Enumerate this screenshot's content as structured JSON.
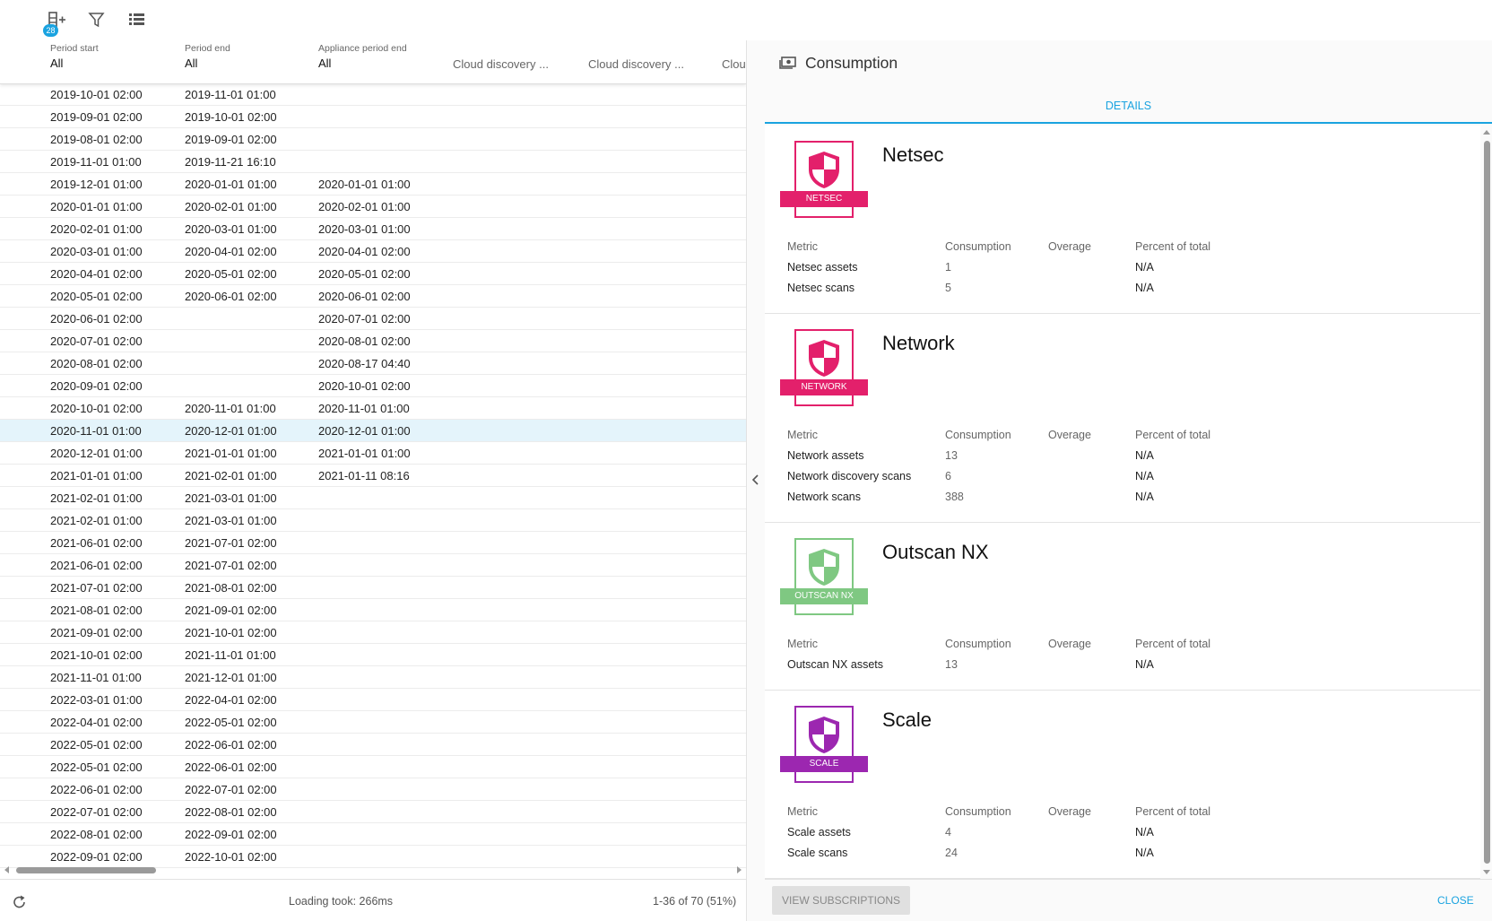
{
  "toolbar": {
    "badge": "28"
  },
  "table": {
    "columns": [
      {
        "label": "Period start",
        "filter": "All"
      },
      {
        "label": "Period end",
        "filter": "All"
      },
      {
        "label": "Appliance period end",
        "filter": "All"
      },
      {
        "label": "Cloud discovery ..."
      },
      {
        "label": "Cloud discovery ..."
      },
      {
        "label": "Clou"
      }
    ],
    "selected_row": 15,
    "rows": [
      [
        "2019-10-01 02:00",
        "2019-11-01 01:00",
        null
      ],
      [
        "2019-09-01 02:00",
        "2019-10-01 02:00",
        null
      ],
      [
        "2019-08-01 02:00",
        "2019-09-01 02:00",
        null
      ],
      [
        "2019-11-01 01:00",
        "2019-11-21 16:10",
        null
      ],
      [
        "2019-12-01 01:00",
        "2020-01-01 01:00",
        "2020-01-01 01:00"
      ],
      [
        "2020-01-01 01:00",
        "2020-02-01 01:00",
        "2020-02-01 01:00"
      ],
      [
        "2020-02-01 01:00",
        "2020-03-01 01:00",
        "2020-03-01 01:00"
      ],
      [
        "2020-03-01 01:00",
        "2020-04-01 02:00",
        "2020-04-01 02:00"
      ],
      [
        "2020-04-01 02:00",
        "2020-05-01 02:00",
        "2020-05-01 02:00"
      ],
      [
        "2020-05-01 02:00",
        "2020-06-01 02:00",
        "2020-06-01 02:00"
      ],
      [
        "2020-06-01 02:00",
        null,
        "2020-07-01 02:00"
      ],
      [
        "2020-07-01 02:00",
        null,
        "2020-08-01 02:00"
      ],
      [
        "2020-08-01 02:00",
        null,
        "2020-08-17 04:40"
      ],
      [
        "2020-09-01 02:00",
        null,
        "2020-10-01 02:00"
      ],
      [
        "2020-10-01 02:00",
        "2020-11-01 01:00",
        "2020-11-01 01:00"
      ],
      [
        "2020-11-01 01:00",
        "2020-12-01 01:00",
        "2020-12-01 01:00"
      ],
      [
        "2020-12-01 01:00",
        "2021-01-01 01:00",
        "2021-01-01 01:00"
      ],
      [
        "2021-01-01 01:00",
        "2021-02-01 01:00",
        "2021-01-11 08:16"
      ],
      [
        "2021-02-01 01:00",
        "2021-03-01 01:00",
        null
      ],
      [
        "2021-02-01 01:00",
        "2021-03-01 01:00",
        null
      ],
      [
        "2021-06-01 02:00",
        "2021-07-01 02:00",
        null
      ],
      [
        "2021-06-01 02:00",
        "2021-07-01 02:00",
        null
      ],
      [
        "2021-07-01 02:00",
        "2021-08-01 02:00",
        null
      ],
      [
        "2021-08-01 02:00",
        "2021-09-01 02:00",
        null
      ],
      [
        "2021-09-01 02:00",
        "2021-10-01 02:00",
        null
      ],
      [
        "2021-10-01 02:00",
        "2021-11-01 01:00",
        null
      ],
      [
        "2021-11-01 01:00",
        "2021-12-01 01:00",
        null
      ],
      [
        "2022-03-01 01:00",
        "2022-04-01 02:00",
        null
      ],
      [
        "2022-04-01 02:00",
        "2022-05-01 02:00",
        null
      ],
      [
        "2022-05-01 02:00",
        "2022-06-01 02:00",
        null
      ],
      [
        "2022-05-01 02:00",
        "2022-06-01 02:00",
        null
      ],
      [
        "2022-06-01 02:00",
        "2022-07-01 02:00",
        null
      ],
      [
        "2022-07-01 02:00",
        "2022-08-01 02:00",
        null
      ],
      [
        "2022-08-01 02:00",
        "2022-09-01 02:00",
        null
      ],
      [
        "2022-09-01 02:00",
        "2022-10-01 02:00",
        null
      ]
    ]
  },
  "footer": {
    "status": "Loading took: 266ms",
    "pagination": "1-36 of 70 (51%)"
  },
  "panel": {
    "title": "Consumption",
    "tab": "DETAILS",
    "metric_headers": [
      "Metric",
      "Consumption",
      "Overage",
      "Percent of total"
    ],
    "products": [
      {
        "name": "Netsec",
        "badge": "NETSEC",
        "color": "#e3206b",
        "metrics": [
          [
            "Netsec assets",
            1,
            null,
            "N/A"
          ],
          [
            "Netsec scans",
            5,
            null,
            "N/A"
          ]
        ]
      },
      {
        "name": "Network",
        "badge": "NETWORK",
        "color": "#e3206b",
        "metrics": [
          [
            "Network assets",
            13,
            null,
            "N/A"
          ],
          [
            "Network discovery scans",
            6,
            null,
            "N/A"
          ],
          [
            "Network scans",
            388,
            null,
            "N/A"
          ]
        ]
      },
      {
        "name": "Outscan NX",
        "badge": "OUTSCAN NX",
        "color": "#7fc882",
        "metrics": [
          [
            "Outscan NX assets",
            13,
            null,
            "N/A"
          ]
        ]
      },
      {
        "name": "Scale",
        "badge": "SCALE",
        "color": "#9c27b0",
        "metrics": [
          [
            "Scale assets",
            4,
            null,
            "N/A"
          ],
          [
            "Scale scans",
            24,
            null,
            "N/A"
          ]
        ]
      }
    ],
    "buttons": {
      "secondary": "VIEW SUBSCRIPTIONS",
      "primary": "CLOSE"
    }
  }
}
